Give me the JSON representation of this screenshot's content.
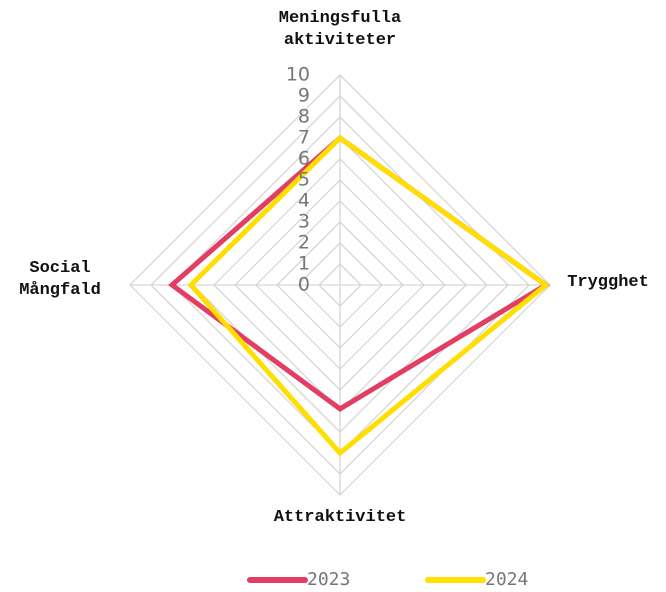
{
  "chart_data": {
    "type": "radar",
    "categories": [
      "Meningsfulla aktiviteter",
      "Trygghet",
      "Attraktivitet",
      "Social Mångfald"
    ],
    "series": [
      {
        "name": "2023",
        "color": "#e23d62",
        "values": [
          7,
          9.8,
          5.9,
          8
        ]
      },
      {
        "name": "2024",
        "color": "#ffde00",
        "values": [
          7,
          9.8,
          8,
          7.1
        ]
      }
    ],
    "rlim": [
      0,
      10
    ],
    "rticks": [
      0,
      1,
      2,
      3,
      4,
      5,
      6,
      7,
      8,
      9,
      10
    ],
    "grid": true,
    "legend": "bottom"
  }
}
